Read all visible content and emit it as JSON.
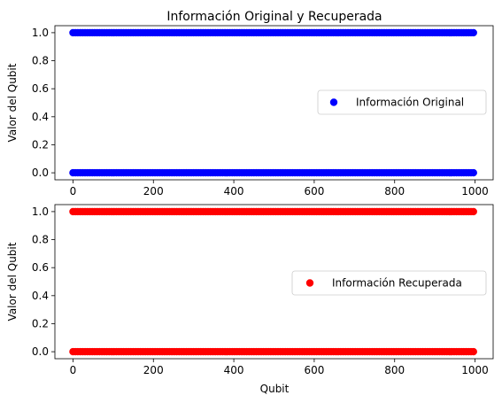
{
  "chart_data": [
    {
      "type": "scatter",
      "title": "Información Original y Recuperada",
      "xlabel": "",
      "ylabel": "Valor del Qubit",
      "xlim": [
        -45,
        1045
      ],
      "ylim": [
        -0.05,
        1.05
      ],
      "x_ticks": [
        0,
        200,
        400,
        600,
        800,
        1000
      ],
      "y_ticks": [
        0.0,
        0.2,
        0.4,
        0.6,
        0.8,
        1.0
      ],
      "legend_position": "center-right",
      "grid": false,
      "series": [
        {
          "name": "Información Original",
          "color": "#0000ff",
          "x_range": [
            0,
            999
          ],
          "values_observed": [
            0,
            1
          ]
        }
      ]
    },
    {
      "type": "scatter",
      "title": "",
      "xlabel": "Qubit",
      "ylabel": "Valor del Qubit",
      "xlim": [
        -45,
        1045
      ],
      "ylim": [
        -0.05,
        1.05
      ],
      "x_ticks": [
        0,
        200,
        400,
        600,
        800,
        1000
      ],
      "y_ticks": [
        0.0,
        0.2,
        0.4,
        0.6,
        0.8,
        1.0
      ],
      "legend_position": "center-right",
      "grid": false,
      "series": [
        {
          "name": "Información Recuperada",
          "color": "#ff0000",
          "x_range": [
            0,
            999
          ],
          "values_observed": [
            0,
            1
          ]
        }
      ]
    }
  ]
}
